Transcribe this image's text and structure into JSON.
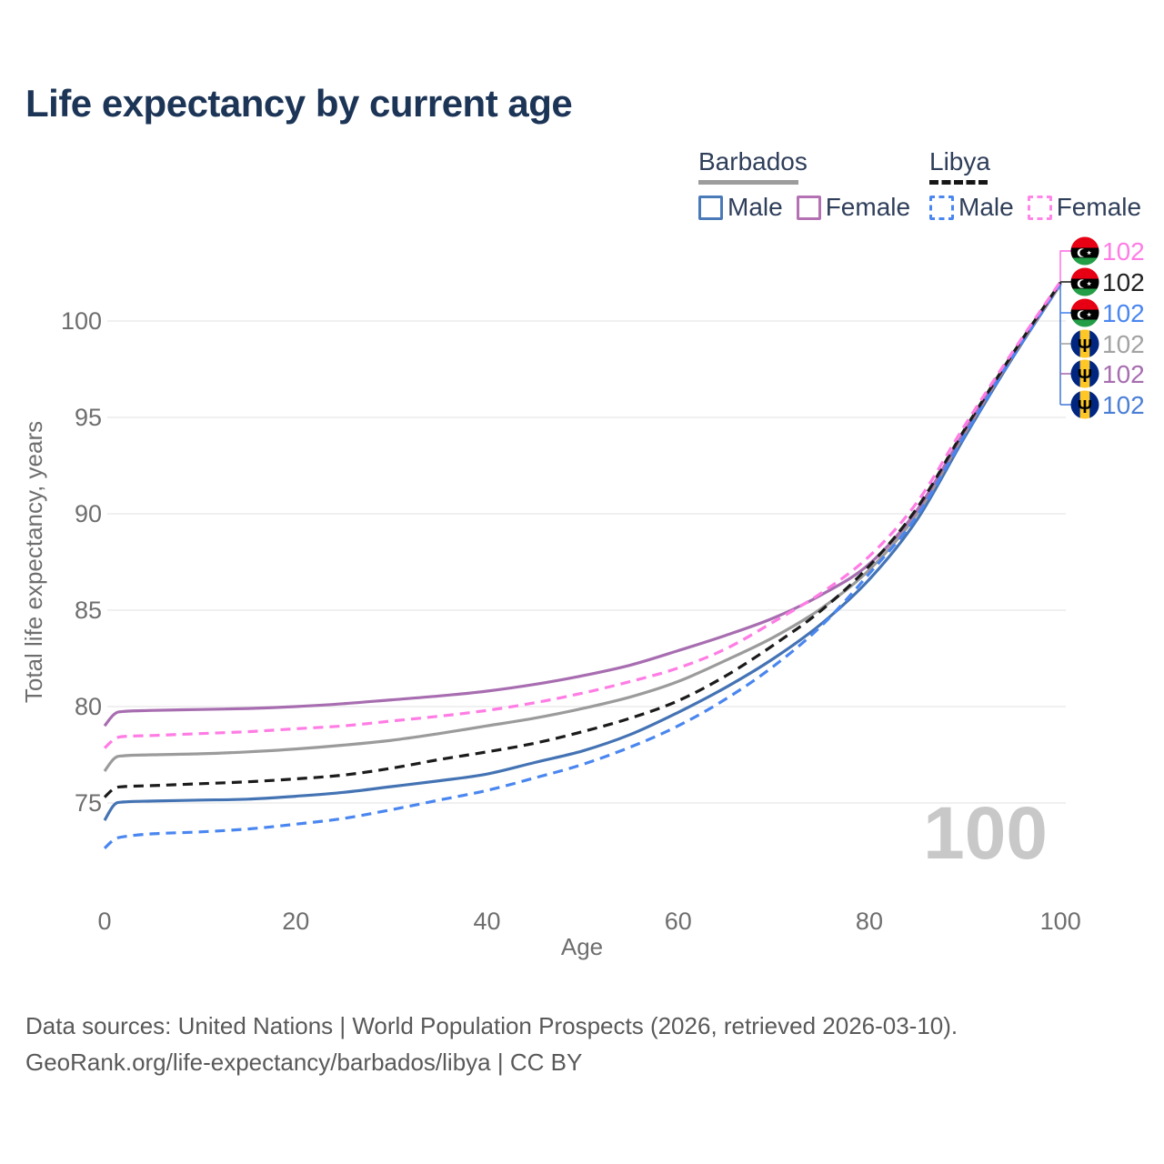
{
  "title": "Life expectancy by current age",
  "legend": {
    "groups": [
      {
        "label": "Barbados",
        "underline_style": "solid",
        "underline_color": "#9c9c9c",
        "items": [
          {
            "label": "Male",
            "color": "#4a7ab8",
            "dashed": false
          },
          {
            "label": "Female",
            "color": "#b472b4",
            "dashed": false
          }
        ]
      },
      {
        "label": "Libya",
        "underline_style": "dashed",
        "underline_color": "#161616",
        "items": [
          {
            "label": "Male",
            "color": "#4a86f0",
            "dashed": true
          },
          {
            "label": "Female",
            "color": "#ff85e8",
            "dashed": true
          }
        ]
      }
    ]
  },
  "age_watermark": "100",
  "footer": {
    "line1": "Data sources: United Nations | World Population Prospects (2026, retrieved 2026-03-10).",
    "line2": "GeoRank.org/life-expectancy/barbados/libya | CC BY"
  },
  "chart_data": {
    "type": "line",
    "title": "Life expectancy by current age",
    "xlabel": "Age",
    "ylabel": "Total life expectancy, years",
    "x_ticks": [
      0,
      20,
      40,
      60,
      80,
      100
    ],
    "y_ticks": [
      75,
      80,
      85,
      90,
      95,
      100
    ],
    "xlim": [
      0,
      100
    ],
    "grid": "horizontal-only",
    "x": [
      0,
      1,
      2,
      5,
      10,
      15,
      20,
      25,
      30,
      35,
      40,
      45,
      50,
      55,
      60,
      65,
      70,
      75,
      80,
      85,
      90,
      95,
      100
    ],
    "series": [
      {
        "key": "barbados_male",
        "name": "Barbados Male",
        "color": "#4473b4",
        "dashed": false,
        "values": [
          74.1,
          74.9,
          75.05,
          75.1,
          75.15,
          75.2,
          75.35,
          75.55,
          75.85,
          76.15,
          76.5,
          77.1,
          77.7,
          78.55,
          79.7,
          81.0,
          82.5,
          84.3,
          86.6,
          89.7,
          94.0,
          98.1,
          101.9
        ]
      },
      {
        "key": "barbados_both",
        "name": "Barbados",
        "color": "#9b9b9b",
        "dashed": false,
        "values": [
          76.65,
          77.3,
          77.45,
          77.5,
          77.55,
          77.65,
          77.8,
          78.0,
          78.25,
          78.6,
          79.0,
          79.4,
          79.9,
          80.5,
          81.3,
          82.4,
          83.6,
          85.1,
          87.1,
          90.0,
          94.2,
          98.2,
          101.9
        ]
      },
      {
        "key": "barbados_female",
        "name": "Barbados Female",
        "color": "#a76db0",
        "dashed": false,
        "values": [
          79.0,
          79.6,
          79.75,
          79.8,
          79.85,
          79.9,
          80.0,
          80.15,
          80.35,
          80.55,
          80.8,
          81.15,
          81.6,
          82.15,
          82.9,
          83.7,
          84.6,
          85.8,
          87.4,
          90.2,
          94.3,
          98.25,
          101.95
        ]
      },
      {
        "key": "libya_male",
        "name": "Libya Male",
        "color": "#4a86f0",
        "dashed": true,
        "values": [
          72.65,
          73.1,
          73.25,
          73.4,
          73.5,
          73.65,
          73.9,
          74.2,
          74.65,
          75.15,
          75.65,
          76.3,
          77.0,
          77.9,
          79.0,
          80.4,
          82.1,
          84.2,
          86.9,
          89.9,
          94.1,
          98.15,
          101.95
        ]
      },
      {
        "key": "libya_both",
        "name": "Libya",
        "color": "#1b1b1b",
        "dashed": true,
        "values": [
          75.3,
          75.75,
          75.85,
          75.9,
          76.0,
          76.1,
          76.25,
          76.45,
          76.8,
          77.25,
          77.65,
          78.1,
          78.7,
          79.4,
          80.3,
          81.6,
          83.2,
          85.0,
          87.3,
          90.3,
          94.4,
          98.3,
          102.0
        ]
      },
      {
        "key": "libya_female",
        "name": "Libya Female",
        "color": "#ff7ce4",
        "dashed": true,
        "values": [
          77.85,
          78.3,
          78.45,
          78.5,
          78.6,
          78.7,
          78.85,
          79.0,
          79.25,
          79.5,
          79.8,
          80.2,
          80.7,
          81.3,
          82.0,
          83.0,
          84.4,
          85.9,
          87.8,
          90.6,
          94.6,
          98.4,
          102.05
        ]
      }
    ],
    "end_labels": [
      {
        "flag": "libya",
        "value": "102",
        "color": "#ff7ce4",
        "series": "libya_female"
      },
      {
        "flag": "libya",
        "value": "102",
        "color": "#222222",
        "series": "libya_both"
      },
      {
        "flag": "libya",
        "value": "102",
        "color": "#4a86f0",
        "series": "libya_male"
      },
      {
        "flag": "barbados",
        "value": "102",
        "color": "#a3a3a3",
        "series": "barbados_both"
      },
      {
        "flag": "barbados",
        "value": "102",
        "color": "#a76db0",
        "series": "barbados_female"
      },
      {
        "flag": "barbados",
        "value": "102",
        "color": "#4b7fd6",
        "series": "barbados_male"
      }
    ]
  }
}
